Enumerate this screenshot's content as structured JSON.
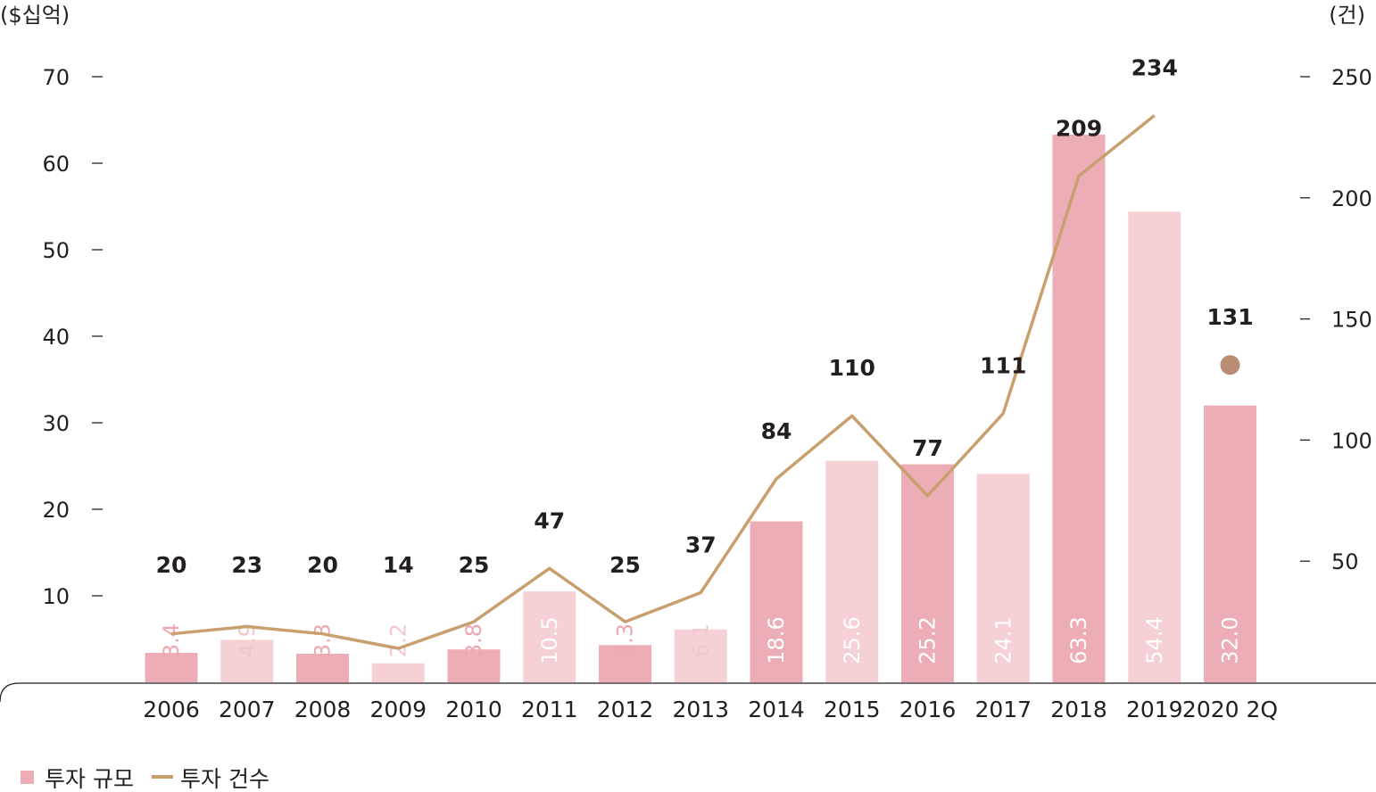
{
  "chart_data": {
    "type": "bar",
    "categories": [
      "2006",
      "2007",
      "2008",
      "2009",
      "2010",
      "2011",
      "2012",
      "2013",
      "2014",
      "2015",
      "2016",
      "2017",
      "2018",
      "2019",
      "2020 2Q"
    ],
    "series": [
      {
        "name": "투자 규모",
        "type": "bar",
        "axis": "left",
        "values": [
          3.4,
          4.9,
          3.3,
          2.2,
          3.8,
          10.5,
          4.3,
          6.1,
          18.6,
          25.6,
          25.2,
          24.1,
          63.3,
          54.4,
          32.0
        ],
        "labels": [
          "3.4",
          "4.9",
          "3.3",
          "2.2",
          "3.8",
          "10.5",
          "4.3",
          "6.1",
          "18.6",
          "25.6",
          "25.2",
          "24.1",
          "63.3",
          "54.4",
          "32.0"
        ]
      },
      {
        "name": "투자 건수",
        "type": "line",
        "axis": "right",
        "values": [
          20,
          23,
          20,
          14,
          25,
          47,
          25,
          37,
          84,
          110,
          77,
          111,
          209,
          234,
          131
        ],
        "labels": [
          "20",
          "23",
          "20",
          "14",
          "25",
          "47",
          "25",
          "37",
          "84",
          "110",
          "77",
          "111",
          "209",
          "234",
          "131"
        ]
      }
    ],
    "left_axis": {
      "unit": "($십억)",
      "ylim": [
        0,
        70
      ],
      "ticks": [
        "10",
        "20",
        "30",
        "40",
        "50",
        "60",
        "70"
      ]
    },
    "right_axis": {
      "unit": "(건)",
      "ylim": [
        0,
        250
      ],
      "ticks": [
        "50",
        "100",
        "150",
        "200",
        "250"
      ]
    },
    "legend": {
      "position": "bottom-left",
      "items": [
        "투자 규모",
        "투자 건수"
      ]
    },
    "colors": {
      "bar_dark": "#ecadb6",
      "bar_light": "#f5d1d6",
      "line": "#c9a06d",
      "point": "#b98c73",
      "label_inside": "#ffffff",
      "label_light": "#f2c6cc",
      "label_dark": "#eea6b1",
      "text": "#231f20"
    }
  }
}
